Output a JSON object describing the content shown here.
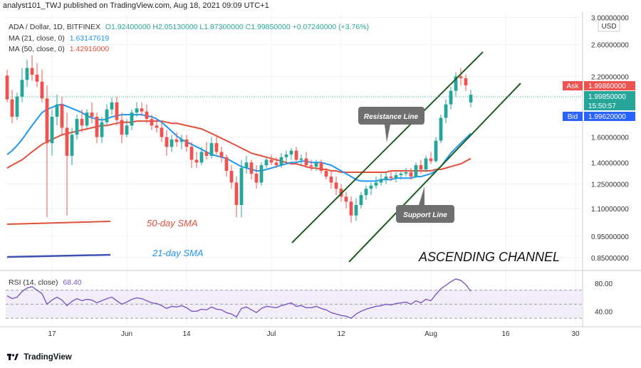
{
  "header": {
    "publisher": "analyst101_TWJ published on TradingView.com, Aug 18, 2021 09:09 UTC+1"
  },
  "legend": {
    "symbol": "ADA / Dollar, 1D, BITFINEX",
    "ohlc": "O1.92400000  H2.05130000  L1.87300000  C1.99850000  +0.07240000 (+3.76%)",
    "ma21_label": "MA (21, close, 0)",
    "ma21_value": "1.63147619",
    "ma50_label": "MA (50, close, 0)",
    "ma50_value": "1.42916000",
    "rsi_label": "RSI (14, close)",
    "rsi_value": "68.40"
  },
  "price_axis": {
    "currency": "USD",
    "ticks": [
      "3.00000000",
      "2.60000000",
      "2.20000000",
      "1.60000000",
      "1.40000000",
      "1.25000000",
      "1.10000000",
      "0.95000000",
      "0.85000000"
    ],
    "ask_label": "Ask",
    "ask_value": "1.99860000",
    "last_value": "1.99850000",
    "countdown": "15:50:57",
    "bid_label": "Bid",
    "bid_value": "1.99620000"
  },
  "rsi_axis": {
    "ticks": [
      "80.00",
      "40.00"
    ]
  },
  "time_axis": {
    "ticks": [
      "17",
      "Jun",
      "14",
      "Jul",
      "12",
      "Aug",
      "16",
      "30"
    ]
  },
  "annotations": {
    "resistance": "Resistance Line",
    "support": "Support Line",
    "sma50": "50-day SMA",
    "sma21": "21-day SMA",
    "channel": "ASCENDING CHANNEL"
  },
  "footer": {
    "brand": "TradingView"
  },
  "colors": {
    "up": "#26a69a",
    "down": "#ef5350",
    "ma21": "#2196f3",
    "ma50": "#e0503a",
    "channel": "#1b5e20",
    "rsi": "#7e57c2"
  },
  "chart_data": {
    "type": "candlestick",
    "symbol": "ADA / Dollar",
    "interval": "1D",
    "exchange": "BITFINEX",
    "price_scale": "log",
    "candles": [
      [
        2.21,
        2.28,
        1.92,
        1.95
      ],
      [
        1.95,
        2.05,
        1.72,
        1.78
      ],
      [
        1.78,
        2.02,
        1.75,
        1.98
      ],
      [
        1.98,
        2.3,
        1.92,
        2.16
      ],
      [
        2.16,
        2.4,
        2.08,
        2.3
      ],
      [
        2.3,
        2.46,
        2.15,
        2.22
      ],
      [
        2.22,
        2.36,
        2.08,
        2.14
      ],
      [
        2.14,
        2.28,
        1.92,
        1.96
      ],
      [
        1.96,
        2.1,
        1.05,
        1.55
      ],
      [
        1.55,
        1.85,
        1.45,
        1.78
      ],
      [
        1.78,
        2.0,
        1.7,
        1.9
      ],
      [
        1.9,
        1.98,
        1.62,
        1.68
      ],
      [
        1.68,
        1.82,
        1.06,
        1.45
      ],
      [
        1.45,
        1.68,
        1.38,
        1.62
      ],
      [
        1.62,
        1.8,
        1.58,
        1.76
      ],
      [
        1.76,
        1.85,
        1.64,
        1.7
      ],
      [
        1.7,
        1.85,
        1.68,
        1.82
      ],
      [
        1.82,
        1.92,
        1.72,
        1.78
      ],
      [
        1.78,
        1.82,
        1.55,
        1.6
      ],
      [
        1.6,
        1.78,
        1.55,
        1.73
      ],
      [
        1.73,
        1.9,
        1.7,
        1.85
      ],
      [
        1.85,
        1.97,
        1.8,
        1.92
      ],
      [
        1.92,
        1.98,
        1.7,
        1.75
      ],
      [
        1.75,
        1.82,
        1.55,
        1.62
      ],
      [
        1.62,
        1.76,
        1.6,
        1.7
      ],
      [
        1.7,
        1.85,
        1.66,
        1.82
      ],
      [
        1.82,
        1.92,
        1.78,
        1.86
      ],
      [
        1.86,
        1.92,
        1.79,
        1.83
      ],
      [
        1.83,
        1.9,
        1.72,
        1.76
      ],
      [
        1.76,
        1.8,
        1.66,
        1.7
      ],
      [
        1.7,
        1.76,
        1.64,
        1.68
      ],
      [
        1.68,
        1.74,
        1.56,
        1.6
      ],
      [
        1.6,
        1.66,
        1.45,
        1.52
      ],
      [
        1.52,
        1.62,
        1.48,
        1.58
      ],
      [
        1.58,
        1.64,
        1.52,
        1.56
      ],
      [
        1.56,
        1.62,
        1.5,
        1.58
      ],
      [
        1.58,
        1.62,
        1.48,
        1.52
      ],
      [
        1.52,
        1.56,
        1.36,
        1.42
      ],
      [
        1.42,
        1.48,
        1.36,
        1.4
      ],
      [
        1.4,
        1.52,
        1.38,
        1.48
      ],
      [
        1.48,
        1.56,
        1.42,
        1.45
      ],
      [
        1.45,
        1.6,
        1.43,
        1.55
      ],
      [
        1.55,
        1.62,
        1.46,
        1.48
      ],
      [
        1.48,
        1.52,
        1.4,
        1.44
      ],
      [
        1.44,
        1.46,
        1.3,
        1.34
      ],
      [
        1.34,
        1.38,
        1.22,
        1.26
      ],
      [
        1.26,
        1.3,
        1.05,
        1.12
      ],
      [
        1.12,
        1.42,
        1.05,
        1.36
      ],
      [
        1.36,
        1.45,
        1.32,
        1.4
      ],
      [
        1.4,
        1.42,
        1.28,
        1.32
      ],
      [
        1.32,
        1.38,
        1.22,
        1.26
      ],
      [
        1.26,
        1.4,
        1.24,
        1.38
      ],
      [
        1.38,
        1.44,
        1.36,
        1.42
      ],
      [
        1.42,
        1.46,
        1.38,
        1.4
      ],
      [
        1.4,
        1.44,
        1.36,
        1.38
      ],
      [
        1.38,
        1.47,
        1.36,
        1.44
      ],
      [
        1.44,
        1.49,
        1.4,
        1.46
      ],
      [
        1.46,
        1.51,
        1.42,
        1.49
      ],
      [
        1.49,
        1.52,
        1.4,
        1.42
      ],
      [
        1.42,
        1.46,
        1.38,
        1.43
      ],
      [
        1.43,
        1.48,
        1.36,
        1.38
      ],
      [
        1.38,
        1.42,
        1.34,
        1.37
      ],
      [
        1.37,
        1.42,
        1.34,
        1.4
      ],
      [
        1.4,
        1.42,
        1.32,
        1.34
      ],
      [
        1.34,
        1.36,
        1.28,
        1.3
      ],
      [
        1.3,
        1.34,
        1.22,
        1.26
      ],
      [
        1.26,
        1.3,
        1.18,
        1.22
      ],
      [
        1.22,
        1.25,
        1.14,
        1.17
      ],
      [
        1.17,
        1.2,
        1.1,
        1.14
      ],
      [
        1.14,
        1.17,
        1.02,
        1.06
      ],
      [
        1.06,
        1.16,
        1.03,
        1.12
      ],
      [
        1.12,
        1.2,
        1.1,
        1.18
      ],
      [
        1.18,
        1.24,
        1.15,
        1.22
      ],
      [
        1.22,
        1.26,
        1.18,
        1.24
      ],
      [
        1.24,
        1.3,
        1.22,
        1.26
      ],
      [
        1.26,
        1.32,
        1.24,
        1.28
      ],
      [
        1.28,
        1.33,
        1.25,
        1.3
      ],
      [
        1.3,
        1.34,
        1.27,
        1.29
      ],
      [
        1.29,
        1.33,
        1.26,
        1.31
      ],
      [
        1.31,
        1.34,
        1.28,
        1.32
      ],
      [
        1.32,
        1.36,
        1.3,
        1.33
      ],
      [
        1.33,
        1.36,
        1.28,
        1.3
      ],
      [
        1.3,
        1.4,
        1.29,
        1.38
      ],
      [
        1.38,
        1.42,
        1.32,
        1.35
      ],
      [
        1.35,
        1.45,
        1.33,
        1.43
      ],
      [
        1.43,
        1.48,
        1.39,
        1.41
      ],
      [
        1.41,
        1.6,
        1.4,
        1.57
      ],
      [
        1.57,
        1.8,
        1.55,
        1.77
      ],
      [
        1.77,
        1.95,
        1.72,
        1.9
      ],
      [
        1.9,
        2.08,
        1.85,
        2.04
      ],
      [
        2.04,
        2.25,
        1.98,
        2.2
      ],
      [
        2.2,
        2.3,
        2.1,
        2.18
      ],
      [
        2.18,
        2.22,
        2.04,
        2.1
      ],
      [
        1.92,
        2.0513,
        1.873,
        1.9985
      ]
    ],
    "ma21": [
      1.46,
      1.49,
      1.53,
      1.58,
      1.64,
      1.7,
      1.76,
      1.82,
      1.85,
      1.87,
      1.89,
      1.9,
      1.88,
      1.86,
      1.84,
      1.82,
      1.79,
      1.77,
      1.76,
      1.75,
      1.76,
      1.78,
      1.79,
      1.8,
      1.8,
      1.8,
      1.8,
      1.8,
      1.79,
      1.78,
      1.76,
      1.73,
      1.69,
      1.65,
      1.61,
      1.58,
      1.56,
      1.54,
      1.52,
      1.5,
      1.48,
      1.46,
      1.45,
      1.44,
      1.43,
      1.41,
      1.39,
      1.37,
      1.36,
      1.35,
      1.34,
      1.34,
      1.35,
      1.36,
      1.37,
      1.38,
      1.39,
      1.4,
      1.4,
      1.41,
      1.41,
      1.4,
      1.4,
      1.4,
      1.39,
      1.38,
      1.36,
      1.34,
      1.32,
      1.3,
      1.28,
      1.27,
      1.27,
      1.27,
      1.27,
      1.28,
      1.28,
      1.28,
      1.29,
      1.29,
      1.29,
      1.29,
      1.3,
      1.3,
      1.31,
      1.32,
      1.34,
      1.37,
      1.42,
      1.47,
      1.51,
      1.55,
      1.59,
      1.63147619
    ],
    "ma50": [
      1.36,
      1.38,
      1.4,
      1.42,
      1.45,
      1.48,
      1.51,
      1.54,
      1.56,
      1.58,
      1.6,
      1.62,
      1.63,
      1.64,
      1.65,
      1.66,
      1.67,
      1.68,
      1.69,
      1.7,
      1.7,
      1.71,
      1.72,
      1.73,
      1.73,
      1.73,
      1.74,
      1.74,
      1.74,
      1.74,
      1.74,
      1.74,
      1.73,
      1.72,
      1.72,
      1.71,
      1.7,
      1.69,
      1.68,
      1.67,
      1.65,
      1.63,
      1.61,
      1.59,
      1.57,
      1.55,
      1.53,
      1.51,
      1.49,
      1.47,
      1.46,
      1.45,
      1.44,
      1.43,
      1.42,
      1.41,
      1.4,
      1.39,
      1.39,
      1.38,
      1.37,
      1.36,
      1.36,
      1.35,
      1.35,
      1.34,
      1.34,
      1.33,
      1.33,
      1.33,
      1.33,
      1.33,
      1.33,
      1.33,
      1.33,
      1.33,
      1.33,
      1.34,
      1.34,
      1.34,
      1.34,
      1.34,
      1.34,
      1.34,
      1.34,
      1.34,
      1.35,
      1.35,
      1.36,
      1.37,
      1.38,
      1.39,
      1.41,
      1.42916
    ],
    "rsi": [
      62,
      58,
      60,
      68,
      73,
      75,
      70,
      65,
      50,
      56,
      60,
      56,
      48,
      54,
      58,
      55,
      57,
      56,
      52,
      55,
      58,
      60,
      55,
      50,
      53,
      57,
      59,
      58,
      55,
      52,
      51,
      48,
      44,
      47,
      46,
      48,
      45,
      40,
      40,
      43,
      42,
      46,
      43,
      42,
      38,
      36,
      32,
      44,
      46,
      42,
      38,
      44,
      47,
      46,
      45,
      48,
      50,
      52,
      47,
      48,
      45,
      45,
      47,
      44,
      42,
      38,
      36,
      34,
      33,
      30,
      36,
      40,
      43,
      45,
      47,
      48,
      50,
      49,
      51,
      52,
      53,
      50,
      55,
      52,
      57,
      55,
      64,
      72,
      77,
      82,
      86,
      84,
      78,
      68.4
    ],
    "rsi_bands": [
      30,
      50,
      70
    ],
    "time_ticks": [
      "17",
      "Jun",
      "14",
      "Jul",
      "12",
      "Aug",
      "16",
      "30"
    ],
    "price_ticks": [
      3.0,
      2.6,
      2.2,
      1.6,
      1.4,
      1.25,
      1.1,
      0.95,
      0.85
    ],
    "price_range": [
      0.8,
      3.05
    ],
    "rsi_range": [
      20,
      95
    ]
  }
}
